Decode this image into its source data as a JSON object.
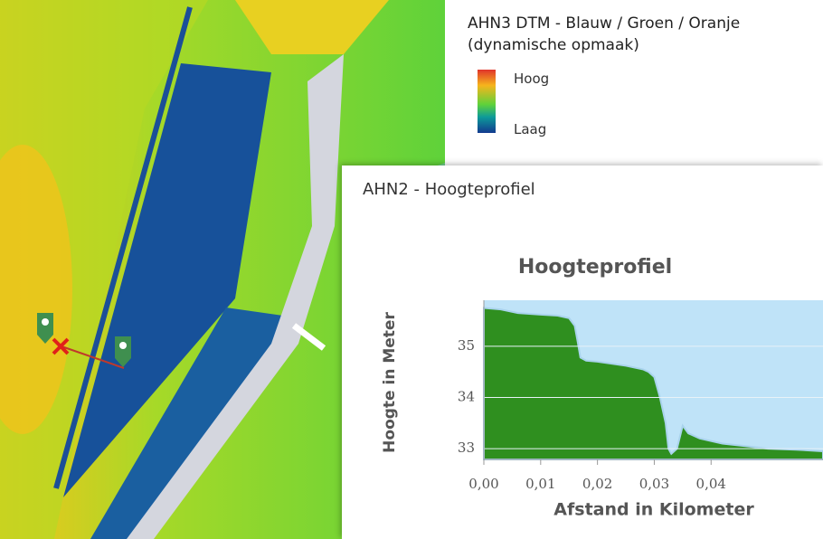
{
  "legend": {
    "title": "AHN3 DTM - Blauw / Groen / Oranje (dynamische opmaak)",
    "high": "Hoog",
    "low": "Laag"
  },
  "panel": {
    "title": "AHN2 - Hoogteprofiel"
  },
  "chart_data": {
    "type": "area",
    "title": "Hoogteprofiel",
    "x_label": "Afstand in Kilometer",
    "y_label": "Hoogte in Meter",
    "color": "#2f8f1f",
    "line_color": "#a9d3ec",
    "background": "#bfe3f8",
    "grid": true,
    "x": [
      0,
      0.003,
      0.006,
      0.01,
      0.013,
      0.015,
      0.016,
      0.0165,
      0.017,
      0.018,
      0.02,
      0.025,
      0.028,
      0.029,
      0.03,
      0.031,
      0.032,
      0.0325,
      0.033,
      0.034,
      0.035,
      0.036,
      0.038,
      0.042,
      0.046,
      0.05,
      0.055,
      0.0597
    ],
    "values": [
      35.75,
      35.72,
      35.65,
      35.62,
      35.6,
      35.55,
      35.4,
      35.1,
      34.78,
      34.72,
      34.7,
      34.62,
      34.55,
      34.5,
      34.4,
      34.0,
      33.5,
      33.0,
      32.9,
      33.0,
      33.45,
      33.3,
      33.2,
      33.1,
      33.05,
      33.0,
      32.98,
      32.95
    ],
    "xlim": [
      0,
      0.0597
    ],
    "ylim": [
      32.79,
      35.9
    ],
    "xticks": [
      {
        "value": 0,
        "label": "0,00"
      },
      {
        "value": 0.01,
        "label": "0,01"
      },
      {
        "value": 0.02,
        "label": "0,02"
      },
      {
        "value": 0.03,
        "label": "0,03"
      },
      {
        "value": 0.04,
        "label": "0,04"
      }
    ],
    "yticks": [
      33,
      34,
      35
    ]
  }
}
